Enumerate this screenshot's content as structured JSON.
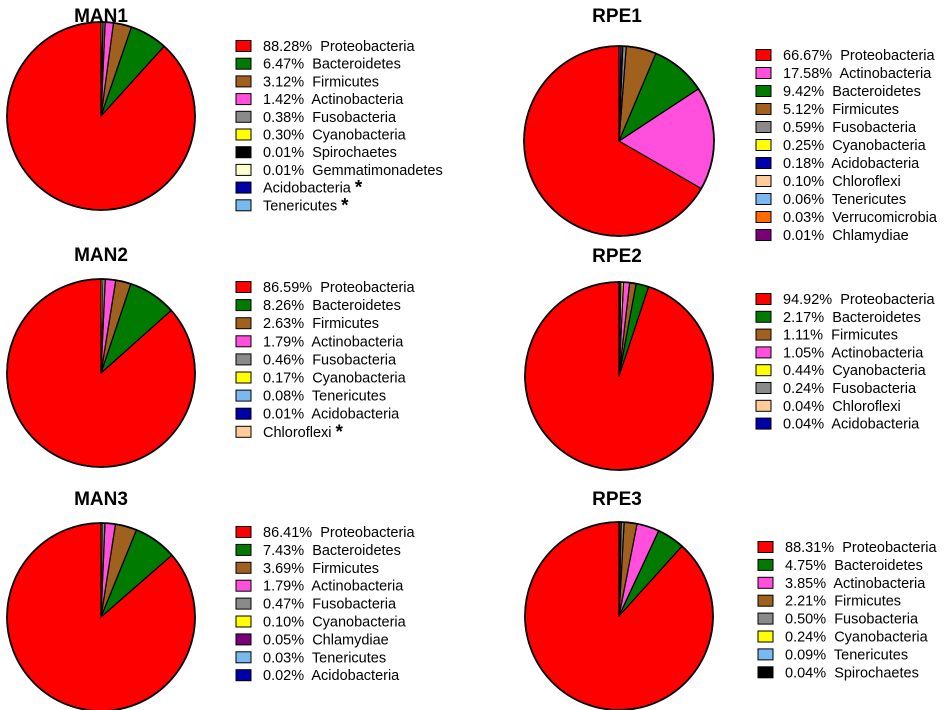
{
  "colors": {
    "Proteobacteria": "#ff0000",
    "Bacteroidetes": "#007a00",
    "Firmicutes": "#a0601e",
    "Actinobacteria": "#ff4fdc",
    "Fusobacteria": "#8a8a8a",
    "Cyanobacteria": "#ffff00",
    "Spirochaetes": "#000000",
    "Gemmatimonadetes": "#ffffcc",
    "Acidobacteria": "#0000aa",
    "Tenericutes": "#7ab8f0",
    "Chloroflexi": "#ffcc99",
    "Verrucomicrobia": "#ff6a00",
    "Chlamydiae": "#7a007a"
  },
  "chart_data": [
    {
      "type": "pie",
      "title": "MAN1",
      "slices": [
        {
          "label": "Proteobacteria",
          "value": 88.28,
          "text": "88.28%"
        },
        {
          "label": "Bacteroidetes",
          "value": 6.47,
          "text": "6.47%"
        },
        {
          "label": "Firmicutes",
          "value": 3.12,
          "text": "3.12%"
        },
        {
          "label": "Actinobacteria",
          "value": 1.42,
          "text": "1.42%"
        },
        {
          "label": "Fusobacteria",
          "value": 0.38,
          "text": "0.38%"
        },
        {
          "label": "Cyanobacteria",
          "value": 0.3,
          "text": "0.30%"
        },
        {
          "label": "Spirochaetes",
          "value": 0.01,
          "text": "0.01%"
        },
        {
          "label": "Gemmatimonadetes",
          "value": 0.01,
          "text": "0.01%"
        },
        {
          "label": "Acidobacteria",
          "value": 0,
          "text": "",
          "marker": "*"
        },
        {
          "label": "Tenericutes",
          "value": 0,
          "text": "",
          "marker": "*"
        }
      ]
    },
    {
      "type": "pie",
      "title": "MAN2",
      "slices": [
        {
          "label": "Proteobacteria",
          "value": 86.59,
          "text": "86.59%"
        },
        {
          "label": "Bacteroidetes",
          "value": 8.26,
          "text": "8.26%"
        },
        {
          "label": "Firmicutes",
          "value": 2.63,
          "text": "2.63%"
        },
        {
          "label": "Actinobacteria",
          "value": 1.79,
          "text": "1.79%"
        },
        {
          "label": "Fusobacteria",
          "value": 0.46,
          "text": "0.46%"
        },
        {
          "label": "Cyanobacteria",
          "value": 0.17,
          "text": "0.17%"
        },
        {
          "label": "Tenericutes",
          "value": 0.08,
          "text": "0.08%"
        },
        {
          "label": "Acidobacteria",
          "value": 0.01,
          "text": "0.01%"
        },
        {
          "label": "Chloroflexi",
          "value": 0,
          "text": "",
          "marker": "*"
        }
      ]
    },
    {
      "type": "pie",
      "title": "MAN3",
      "slices": [
        {
          "label": "Proteobacteria",
          "value": 86.41,
          "text": "86.41%"
        },
        {
          "label": "Bacteroidetes",
          "value": 7.43,
          "text": "7.43%"
        },
        {
          "label": "Firmicutes",
          "value": 3.69,
          "text": "3.69%"
        },
        {
          "label": "Actinobacteria",
          "value": 1.79,
          "text": "1.79%"
        },
        {
          "label": "Fusobacteria",
          "value": 0.47,
          "text": "0.47%"
        },
        {
          "label": "Cyanobacteria",
          "value": 0.1,
          "text": "0.10%"
        },
        {
          "label": "Chlamydiae",
          "value": 0.05,
          "text": "0.05%"
        },
        {
          "label": "Tenericutes",
          "value": 0.03,
          "text": "0.03%"
        },
        {
          "label": "Acidobacteria",
          "value": 0.02,
          "text": "0.02%"
        }
      ]
    },
    {
      "type": "pie",
      "title": "RPE1",
      "slices": [
        {
          "label": "Proteobacteria",
          "value": 66.67,
          "text": "66.67%"
        },
        {
          "label": "Actinobacteria",
          "value": 17.58,
          "text": "17.58%"
        },
        {
          "label": "Bacteroidetes",
          "value": 9.42,
          "text": "9.42%"
        },
        {
          "label": "Firmicutes",
          "value": 5.12,
          "text": "5.12%"
        },
        {
          "label": "Fusobacteria",
          "value": 0.59,
          "text": "0.59%"
        },
        {
          "label": "Cyanobacteria",
          "value": 0.25,
          "text": "0.25%"
        },
        {
          "label": "Acidobacteria",
          "value": 0.18,
          "text": "0.18%"
        },
        {
          "label": "Chloroflexi",
          "value": 0.1,
          "text": "0.10%"
        },
        {
          "label": "Tenericutes",
          "value": 0.06,
          "text": "0.06%"
        },
        {
          "label": "Verrucomicrobia",
          "value": 0.03,
          "text": "0.03%"
        },
        {
          "label": "Chlamydiae",
          "value": 0.01,
          "text": "0.01%"
        }
      ]
    },
    {
      "type": "pie",
      "title": "RPE2",
      "slices": [
        {
          "label": "Proteobacteria",
          "value": 94.92,
          "text": "94.92%"
        },
        {
          "label": "Bacteroidetes",
          "value": 2.17,
          "text": "2.17%"
        },
        {
          "label": "Firmicutes",
          "value": 1.11,
          "text": "1.11%"
        },
        {
          "label": "Actinobacteria",
          "value": 1.05,
          "text": "1.05%"
        },
        {
          "label": "Cyanobacteria",
          "value": 0.44,
          "text": "0.44%"
        },
        {
          "label": "Fusobacteria",
          "value": 0.24,
          "text": "0.24%"
        },
        {
          "label": "Chloroflexi",
          "value": 0.04,
          "text": "0.04%"
        },
        {
          "label": "Acidobacteria",
          "value": 0.04,
          "text": "0.04%"
        }
      ]
    },
    {
      "type": "pie",
      "title": "RPE3",
      "slices": [
        {
          "label": "Proteobacteria",
          "value": 88.31,
          "text": "88.31%"
        },
        {
          "label": "Bacteroidetes",
          "value": 4.75,
          "text": "4.75%"
        },
        {
          "label": "Actinobacteria",
          "value": 3.85,
          "text": "3.85%"
        },
        {
          "label": "Firmicutes",
          "value": 2.21,
          "text": "2.21%"
        },
        {
          "label": "Fusobacteria",
          "value": 0.5,
          "text": "0.50%"
        },
        {
          "label": "Cyanobacteria",
          "value": 0.24,
          "text": "0.24%"
        },
        {
          "label": "Tenericutes",
          "value": 0.09,
          "text": "0.09%"
        },
        {
          "label": "Spirochaetes",
          "value": 0.04,
          "text": "0.04%"
        }
      ]
    }
  ]
}
